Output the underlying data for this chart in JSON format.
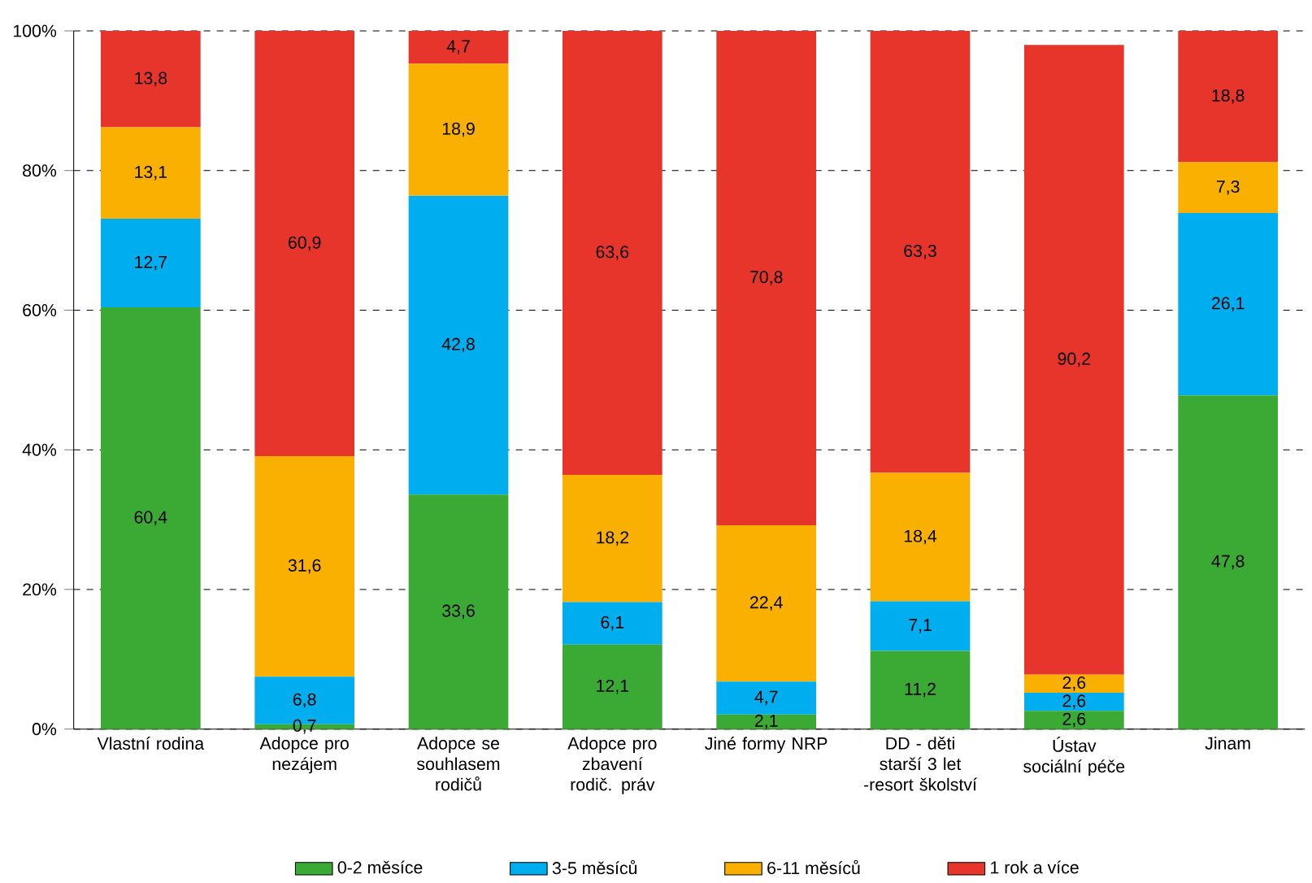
{
  "chart_data": {
    "type": "bar",
    "stacked": true,
    "grid": "y",
    "legend": "bottom",
    "categories": [
      "Vlastní rodina",
      "Adopce pro nezájem",
      "Adopce se souhlasem rodičů",
      "Adopce pro zbavení rodič. práv",
      "Jiné formy NRP",
      "DD - děti starší 3 let -resort školství",
      "Ústav sociální péče",
      "Jinam"
    ],
    "ylim": [
      0,
      100
    ],
    "yticks": [
      {
        "value": 0,
        "label": "0%"
      },
      {
        "value": 20,
        "label": "20%"
      },
      {
        "value": 40,
        "label": "40%"
      },
      {
        "value": 60,
        "label": "60%"
      },
      {
        "value": 80,
        "label": "80%"
      },
      {
        "value": 100,
        "label": "100%"
      }
    ],
    "series": [
      {
        "name": "0-2 měsíce",
        "color": "#3aaa35",
        "values": [
          60.4,
          0.7,
          33.6,
          12.1,
          2.1,
          11.2,
          2.6,
          47.8
        ],
        "value_labels": [
          "60,4",
          "0,7",
          "33,6",
          "12,1",
          "2,1",
          "11,2",
          "2,6",
          "47,8"
        ]
      },
      {
        "name": "3-5 měsíců",
        "color": "#00aeef",
        "values": [
          12.7,
          6.8,
          42.8,
          6.1,
          4.7,
          7.1,
          2.6,
          26.1
        ],
        "value_labels": [
          "12,7",
          "6,8",
          "42,8",
          "6,1",
          "4,7",
          "7,1",
          "2,6",
          "26,1"
        ]
      },
      {
        "name": "6-11 měsíců",
        "color": "#f9b000",
        "values": [
          13.1,
          31.6,
          18.9,
          18.2,
          22.4,
          18.4,
          2.6,
          7.3
        ],
        "value_labels": [
          "13,1",
          "31,6",
          "18,9",
          "18,2",
          "22,4",
          "18,4",
          "2,6",
          "7,3"
        ]
      },
      {
        "name": "1 rok a více",
        "color": "#e8352b",
        "values": [
          13.8,
          60.9,
          4.7,
          63.6,
          70.8,
          63.3,
          90.2,
          18.8
        ],
        "value_labels": [
          "13,8",
          "60,9",
          "4,7",
          "63,6",
          "70,8",
          "63,3",
          "90,2",
          "18,8"
        ]
      }
    ]
  }
}
